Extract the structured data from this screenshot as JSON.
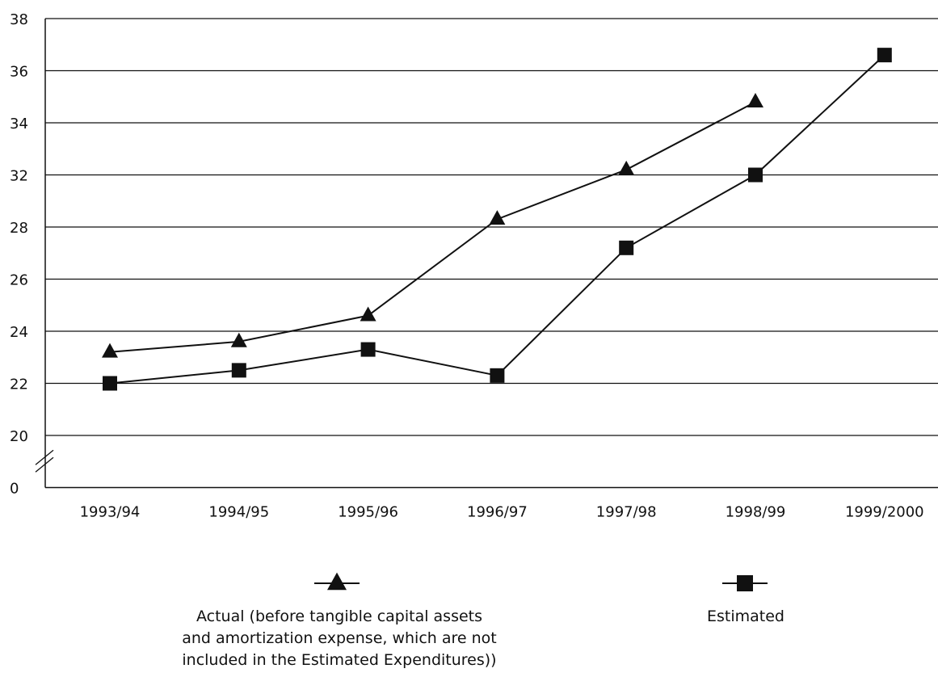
{
  "chart_data": {
    "type": "line",
    "categories": [
      "1993/94",
      "1994/95",
      "1995/96",
      "1996/97",
      "1997/98",
      "1998/99",
      "1999/2000"
    ],
    "y_ticks": [
      "0",
      "20",
      "22",
      "24",
      "26",
      "28",
      "32",
      "34",
      "36",
      "38"
    ],
    "y_axis_break": true,
    "grid": true,
    "legend_position": "bottom",
    "series": [
      {
        "name_lines": [
          "Actual (before tangible capital assets",
          "and amortization expense, which are not",
          "included in the Estimated Expenditures))"
        ],
        "marker": "triangle",
        "values": [
          23.2,
          23.6,
          24.6,
          28.6,
          32.2,
          34.8,
          null
        ]
      },
      {
        "name_lines": [
          "Estimated"
        ],
        "marker": "square",
        "values": [
          22.0,
          22.5,
          23.3,
          22.3,
          27.2,
          32.0,
          36.6
        ]
      }
    ]
  }
}
